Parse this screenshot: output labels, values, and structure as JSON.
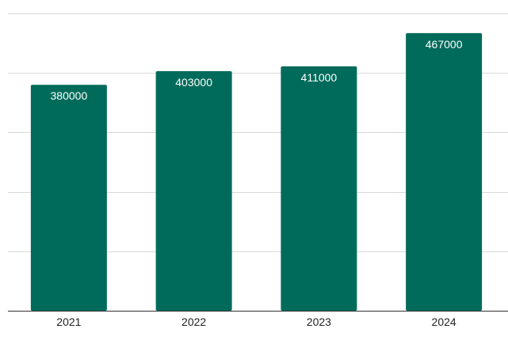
{
  "chart_data": {
    "type": "bar",
    "title": "",
    "xlabel": "",
    "ylabel": "",
    "categories": [
      "2021",
      "2022",
      "2023",
      "2024"
    ],
    "values": [
      380000,
      403000,
      411000,
      467000
    ],
    "data_labels": [
      "380000",
      "403000",
      "411000",
      "467000"
    ],
    "ylim": [
      0,
      500000
    ],
    "y_gridline_step": 100000,
    "grid": true,
    "legend": "none",
    "bar_color": "#006b5a",
    "gridline_color": "#d9d9d9",
    "baseline_color": "#333333"
  }
}
